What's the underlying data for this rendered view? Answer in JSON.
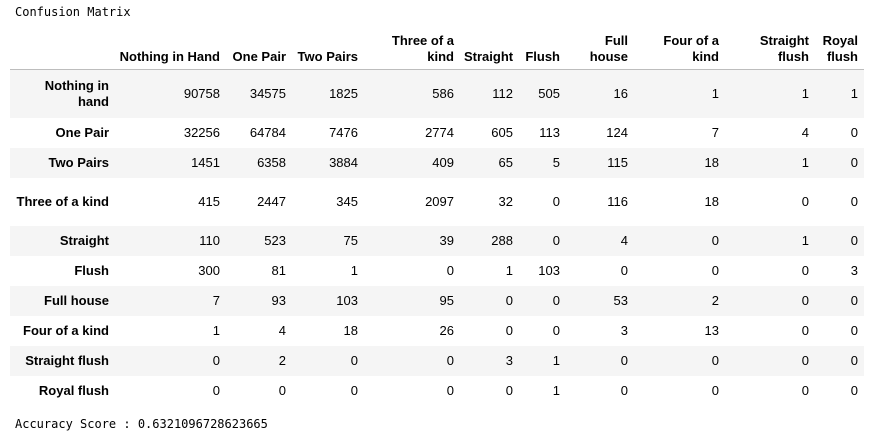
{
  "title": "Confusion Matrix",
  "columns": [
    "Nothing in Hand",
    "One Pair",
    "Two Pairs",
    "Three of a kind",
    "Straight",
    "Flush",
    "Full house",
    "Four of a kind",
    "Straight flush",
    "Royal flush"
  ],
  "rows": [
    {
      "label": "Nothing in hand",
      "values": [
        "90758",
        "34575",
        "1825",
        "586",
        "112",
        "505",
        "16",
        "1",
        "1",
        "1"
      ]
    },
    {
      "label": "One Pair",
      "values": [
        "32256",
        "64784",
        "7476",
        "2774",
        "605",
        "113",
        "124",
        "7",
        "4",
        "0"
      ]
    },
    {
      "label": "Two Pairs",
      "values": [
        "1451",
        "6358",
        "3884",
        "409",
        "65",
        "5",
        "115",
        "18",
        "1",
        "0"
      ]
    },
    {
      "label": "Three of a kind",
      "values": [
        "415",
        "2447",
        "345",
        "2097",
        "32",
        "0",
        "116",
        "18",
        "0",
        "0"
      ]
    },
    {
      "label": "Straight",
      "values": [
        "110",
        "523",
        "75",
        "39",
        "288",
        "0",
        "4",
        "0",
        "1",
        "0"
      ]
    },
    {
      "label": "Flush",
      "values": [
        "300",
        "81",
        "1",
        "0",
        "1",
        "103",
        "0",
        "0",
        "0",
        "3"
      ]
    },
    {
      "label": "Full house",
      "values": [
        "7",
        "93",
        "103",
        "95",
        "0",
        "0",
        "53",
        "2",
        "0",
        "0"
      ]
    },
    {
      "label": "Four of a kind",
      "values": [
        "1",
        "4",
        "18",
        "26",
        "0",
        "0",
        "3",
        "13",
        "0",
        "0"
      ]
    },
    {
      "label": "Straight flush",
      "values": [
        "0",
        "2",
        "0",
        "0",
        "3",
        "1",
        "0",
        "0",
        "0",
        "0"
      ]
    },
    {
      "label": "Royal flush",
      "values": [
        "0",
        "0",
        "0",
        "0",
        "0",
        "1",
        "0",
        "0",
        "0",
        "0"
      ]
    }
  ],
  "footer": "Accuracy Score : 0.6321096728623665"
}
